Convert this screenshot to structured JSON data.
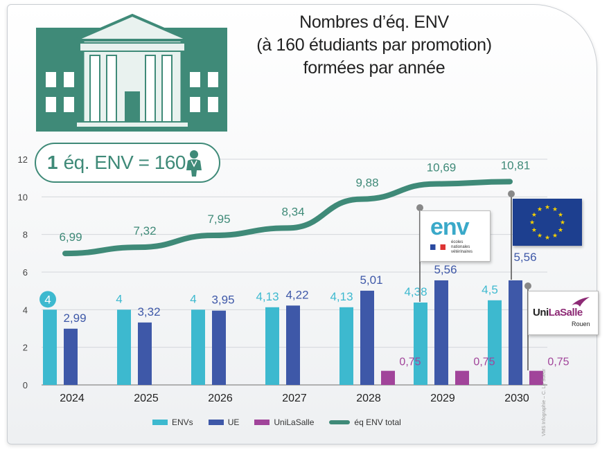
{
  "title": {
    "line1": "Nombres d’éq. ENV",
    "line2": "(à 160 étudiants par promotion)",
    "line3": "formées par année"
  },
  "badge": {
    "bold": "1",
    "rest": "éq. ENV = 160"
  },
  "credit": "VMS Infographie – C. Le Sueur",
  "logos": {
    "env": {
      "word": "env",
      "sub": [
        "écoles",
        "nationales",
        "vétérinaires"
      ]
    },
    "unilasalle": {
      "name_a": "Uni",
      "name_b": "LaSalle",
      "city": "Rouen"
    }
  },
  "colors": {
    "envs": "#3db9cf",
    "ue": "#3e58a8",
    "unilasalle": "#a1449a",
    "total": "#3f8a78",
    "label_envs": "#3db9cf",
    "label_ue": "#3e58a8",
    "label_unilasalle": "#a1449a",
    "label_total": "#3f8a78"
  },
  "chart_data": {
    "type": "bar",
    "title": "Nombres d’éq. ENV (à 160 étudiants par promotion) formées par année",
    "categories": [
      "2024",
      "2025",
      "2026",
      "2027",
      "2028",
      "2029",
      "2030"
    ],
    "series": [
      {
        "name": "ENVs",
        "values": [
          4,
          4,
          4,
          4.13,
          4.13,
          4.38,
          4.5
        ],
        "labels": [
          "4",
          "4",
          "4",
          "4,13",
          "4,13",
          "4,38",
          "4,5"
        ]
      },
      {
        "name": "UE",
        "values": [
          2.99,
          3.32,
          3.95,
          4.22,
          5.01,
          5.56,
          5.56
        ],
        "labels": [
          "2,99",
          "3,32",
          "3,95",
          "4,22",
          "5,01",
          "5,56",
          "5,56"
        ]
      },
      {
        "name": "UniLaSalle",
        "values": [
          0,
          0,
          0,
          0,
          0.75,
          0.75,
          0.75
        ],
        "labels": [
          "",
          "",
          "",
          "",
          "0,75",
          "0,75",
          "0,75"
        ]
      },
      {
        "name": "éq ENV total",
        "type": "line",
        "values": [
          6.99,
          7.32,
          7.95,
          8.34,
          9.88,
          10.69,
          10.81
        ],
        "labels": [
          "6,99",
          "7,32",
          "7,95",
          "8,34",
          "9,88",
          "10,69",
          "10,81"
        ]
      }
    ],
    "y_ticks": [
      "0",
      "2",
      "4",
      "6",
      "8",
      "10",
      "12"
    ],
    "ylim": [
      0,
      12
    ],
    "grid": true,
    "legend": [
      "ENVs",
      "UE",
      "UniLaSalle",
      "éq ENV total"
    ],
    "legend_position": "bottom"
  }
}
